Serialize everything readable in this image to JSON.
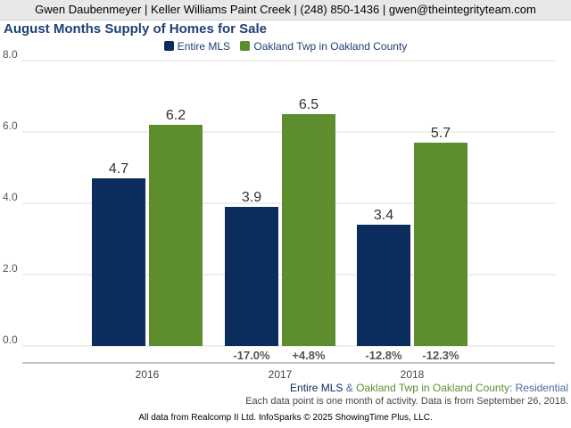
{
  "header": {
    "contact": "Gwen Daubenmeyer | Keller Williams Paint Creek | (248) 850-1436 | gwen@theintegrityteam.com"
  },
  "chart_data": {
    "type": "bar",
    "title": "August Months Supply of Homes for Sale",
    "categories": [
      "2016",
      "2017",
      "2018"
    ],
    "series": [
      {
        "name": "Entire MLS",
        "values": [
          4.7,
          3.9,
          3.4
        ],
        "color": "#0a2d5e",
        "changes": [
          "",
          "-17.0%",
          "-12.8%"
        ]
      },
      {
        "name": "Oakland Twp in Oakland County",
        "values": [
          6.2,
          6.5,
          5.7
        ],
        "color": "#5e8d2e",
        "changes": [
          "",
          "+4.8%",
          "-12.3%"
        ]
      }
    ],
    "ylim": [
      0,
      8
    ],
    "yticks": [
      "0.0",
      "2.0",
      "4.0",
      "6.0",
      "8.0"
    ],
    "grid": true,
    "legend": "top-center"
  },
  "footer": {
    "series_line": {
      "part1": "Entire MLS",
      "amp": " & ",
      "part2": "Oakland Twp in Oakland County",
      "colon": ": ",
      "part3": "Residential"
    },
    "note": "Each data point is one month of activity. Data is from September 26, 2018.",
    "source": "All data from Realcomp II Ltd. InfoSparks © 2025 ShowingTime Plus, LLC."
  },
  "colors": {
    "title": "#1f3f73",
    "entire_mls": "#0a2d5e",
    "oakland": "#5e8d2e",
    "residential": "#4a6a9a"
  }
}
